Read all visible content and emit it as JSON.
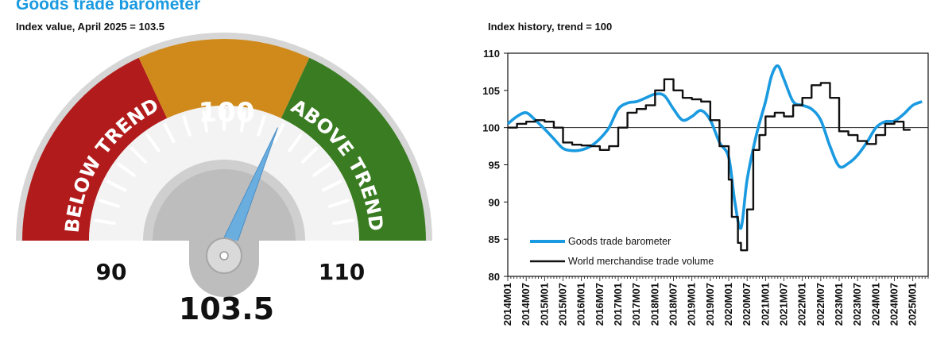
{
  "title": "Goods trade barometer",
  "gauge": {
    "subtitle": "Index value, April 2025 = 103.5",
    "value": 103.5,
    "value_label": "103.5",
    "min": 90,
    "max": 110,
    "min_label": "90",
    "max_label": "110",
    "center_label": "100",
    "below_label": "BELOW TREND",
    "above_label": "ABOVE TREND",
    "colors": {
      "below": "#b21b1b",
      "center": "#d08a1c",
      "above": "#3a7c22",
      "needle": "#6aaee0"
    }
  },
  "chart_data": {
    "type": "line",
    "title": "Index history, trend = 100",
    "xlabel": "",
    "ylabel": "",
    "ylim": [
      80,
      110
    ],
    "yticks": [
      80,
      85,
      90,
      95,
      100,
      105,
      110
    ],
    "reference_line": 100,
    "xlim": [
      "2014M01",
      "2025M06"
    ],
    "tick_labels": [
      "2014M01",
      "2014M07",
      "2015M01",
      "2015M07",
      "2016M01",
      "2016M07",
      "2017M01",
      "2017M07",
      "2018M01",
      "2018M07",
      "2019M01",
      "2019M07",
      "2020M01",
      "2020M07",
      "2021M01",
      "2021M07",
      "2022M01",
      "2022M07",
      "2023M01",
      "2023M07",
      "2024M01",
      "2024M07",
      "2025M01"
    ],
    "legend_position": "bottom-left",
    "series": [
      {
        "name": "Goods trade barometer",
        "color": "#1a9ae0",
        "points": [
          [
            "2014M01",
            100.5
          ],
          [
            "2014M04",
            101.5
          ],
          [
            "2014M07",
            102.0
          ],
          [
            "2014M10",
            101.0
          ],
          [
            "2015M01",
            99.8
          ],
          [
            "2015M04",
            98.5
          ],
          [
            "2015M07",
            97.2
          ],
          [
            "2015M10",
            96.9
          ],
          [
            "2016M01",
            97.0
          ],
          [
            "2016M04",
            97.5
          ],
          [
            "2016M07",
            98.5
          ],
          [
            "2016M10",
            100.0
          ],
          [
            "2017M01",
            102.5
          ],
          [
            "2017M04",
            103.3
          ],
          [
            "2017M07",
            103.5
          ],
          [
            "2017M10",
            104.0
          ],
          [
            "2018M01",
            104.5
          ],
          [
            "2018M04",
            104.3
          ],
          [
            "2018M07",
            102.5
          ],
          [
            "2018M10",
            101.0
          ],
          [
            "2019M01",
            101.5
          ],
          [
            "2019M04",
            102.3
          ],
          [
            "2019M07",
            101.0
          ],
          [
            "2019M10",
            98.0
          ],
          [
            "2020M01",
            96.0
          ],
          [
            "2020M03",
            90.0
          ],
          [
            "2020M05",
            86.5
          ],
          [
            "2020M07",
            93.0
          ],
          [
            "2020M10",
            99.0
          ],
          [
            "2021M01",
            103.5
          ],
          [
            "2021M03",
            107.0
          ],
          [
            "2021M05",
            108.3
          ],
          [
            "2021M07",
            106.5
          ],
          [
            "2021M10",
            103.5
          ],
          [
            "2022M01",
            103.0
          ],
          [
            "2022M04",
            102.5
          ],
          [
            "2022M07",
            101.0
          ],
          [
            "2022M10",
            97.5
          ],
          [
            "2023M01",
            94.8
          ],
          [
            "2023M04",
            95.2
          ],
          [
            "2023M07",
            96.3
          ],
          [
            "2023M10",
            98.0
          ],
          [
            "2024M01",
            100.0
          ],
          [
            "2024M04",
            100.8
          ],
          [
            "2024M07",
            100.9
          ],
          [
            "2024M10",
            101.8
          ],
          [
            "2025M01",
            103.0
          ],
          [
            "2025M04",
            103.5
          ]
        ]
      },
      {
        "name": "World merchandise trade volume",
        "color": "#111111",
        "points": [
          [
            "2014M01",
            100.0
          ],
          [
            "2014M04",
            100.5
          ],
          [
            "2014M07",
            100.8
          ],
          [
            "2014M10",
            101.0
          ],
          [
            "2015M01",
            100.8
          ],
          [
            "2015M04",
            100.0
          ],
          [
            "2015M07",
            98.0
          ],
          [
            "2015M10",
            97.7
          ],
          [
            "2016M01",
            97.6
          ],
          [
            "2016M04",
            97.5
          ],
          [
            "2016M07",
            97.0
          ],
          [
            "2016M10",
            97.5
          ],
          [
            "2017M01",
            100.0
          ],
          [
            "2017M04",
            102.0
          ],
          [
            "2017M07",
            102.5
          ],
          [
            "2017M10",
            103.0
          ],
          [
            "2018M01",
            105.0
          ],
          [
            "2018M04",
            106.5
          ],
          [
            "2018M07",
            105.0
          ],
          [
            "2018M10",
            104.0
          ],
          [
            "2019M01",
            103.8
          ],
          [
            "2019M04",
            103.5
          ],
          [
            "2019M07",
            101.0
          ],
          [
            "2019M10",
            97.5
          ],
          [
            "2020M01",
            93.0
          ],
          [
            "2020M02",
            88.0
          ],
          [
            "2020M04",
            84.5
          ],
          [
            "2020M05",
            83.5
          ],
          [
            "2020M07",
            89.0
          ],
          [
            "2020M09",
            97.0
          ],
          [
            "2020M11",
            99.0
          ],
          [
            "2021M01",
            101.5
          ],
          [
            "2021M04",
            102.0
          ],
          [
            "2021M07",
            101.5
          ],
          [
            "2021M10",
            103.0
          ],
          [
            "2022M01",
            104.0
          ],
          [
            "2022M04",
            105.7
          ],
          [
            "2022M07",
            106.0
          ],
          [
            "2022M10",
            104.0
          ],
          [
            "2023M01",
            99.5
          ],
          [
            "2023M04",
            99.0
          ],
          [
            "2023M07",
            98.2
          ],
          [
            "2023M10",
            97.8
          ],
          [
            "2024M01",
            99.0
          ],
          [
            "2024M04",
            100.5
          ],
          [
            "2024M07",
            100.8
          ],
          [
            "2024M10",
            99.7
          ],
          [
            "2024M12",
            99.8
          ]
        ]
      }
    ]
  }
}
